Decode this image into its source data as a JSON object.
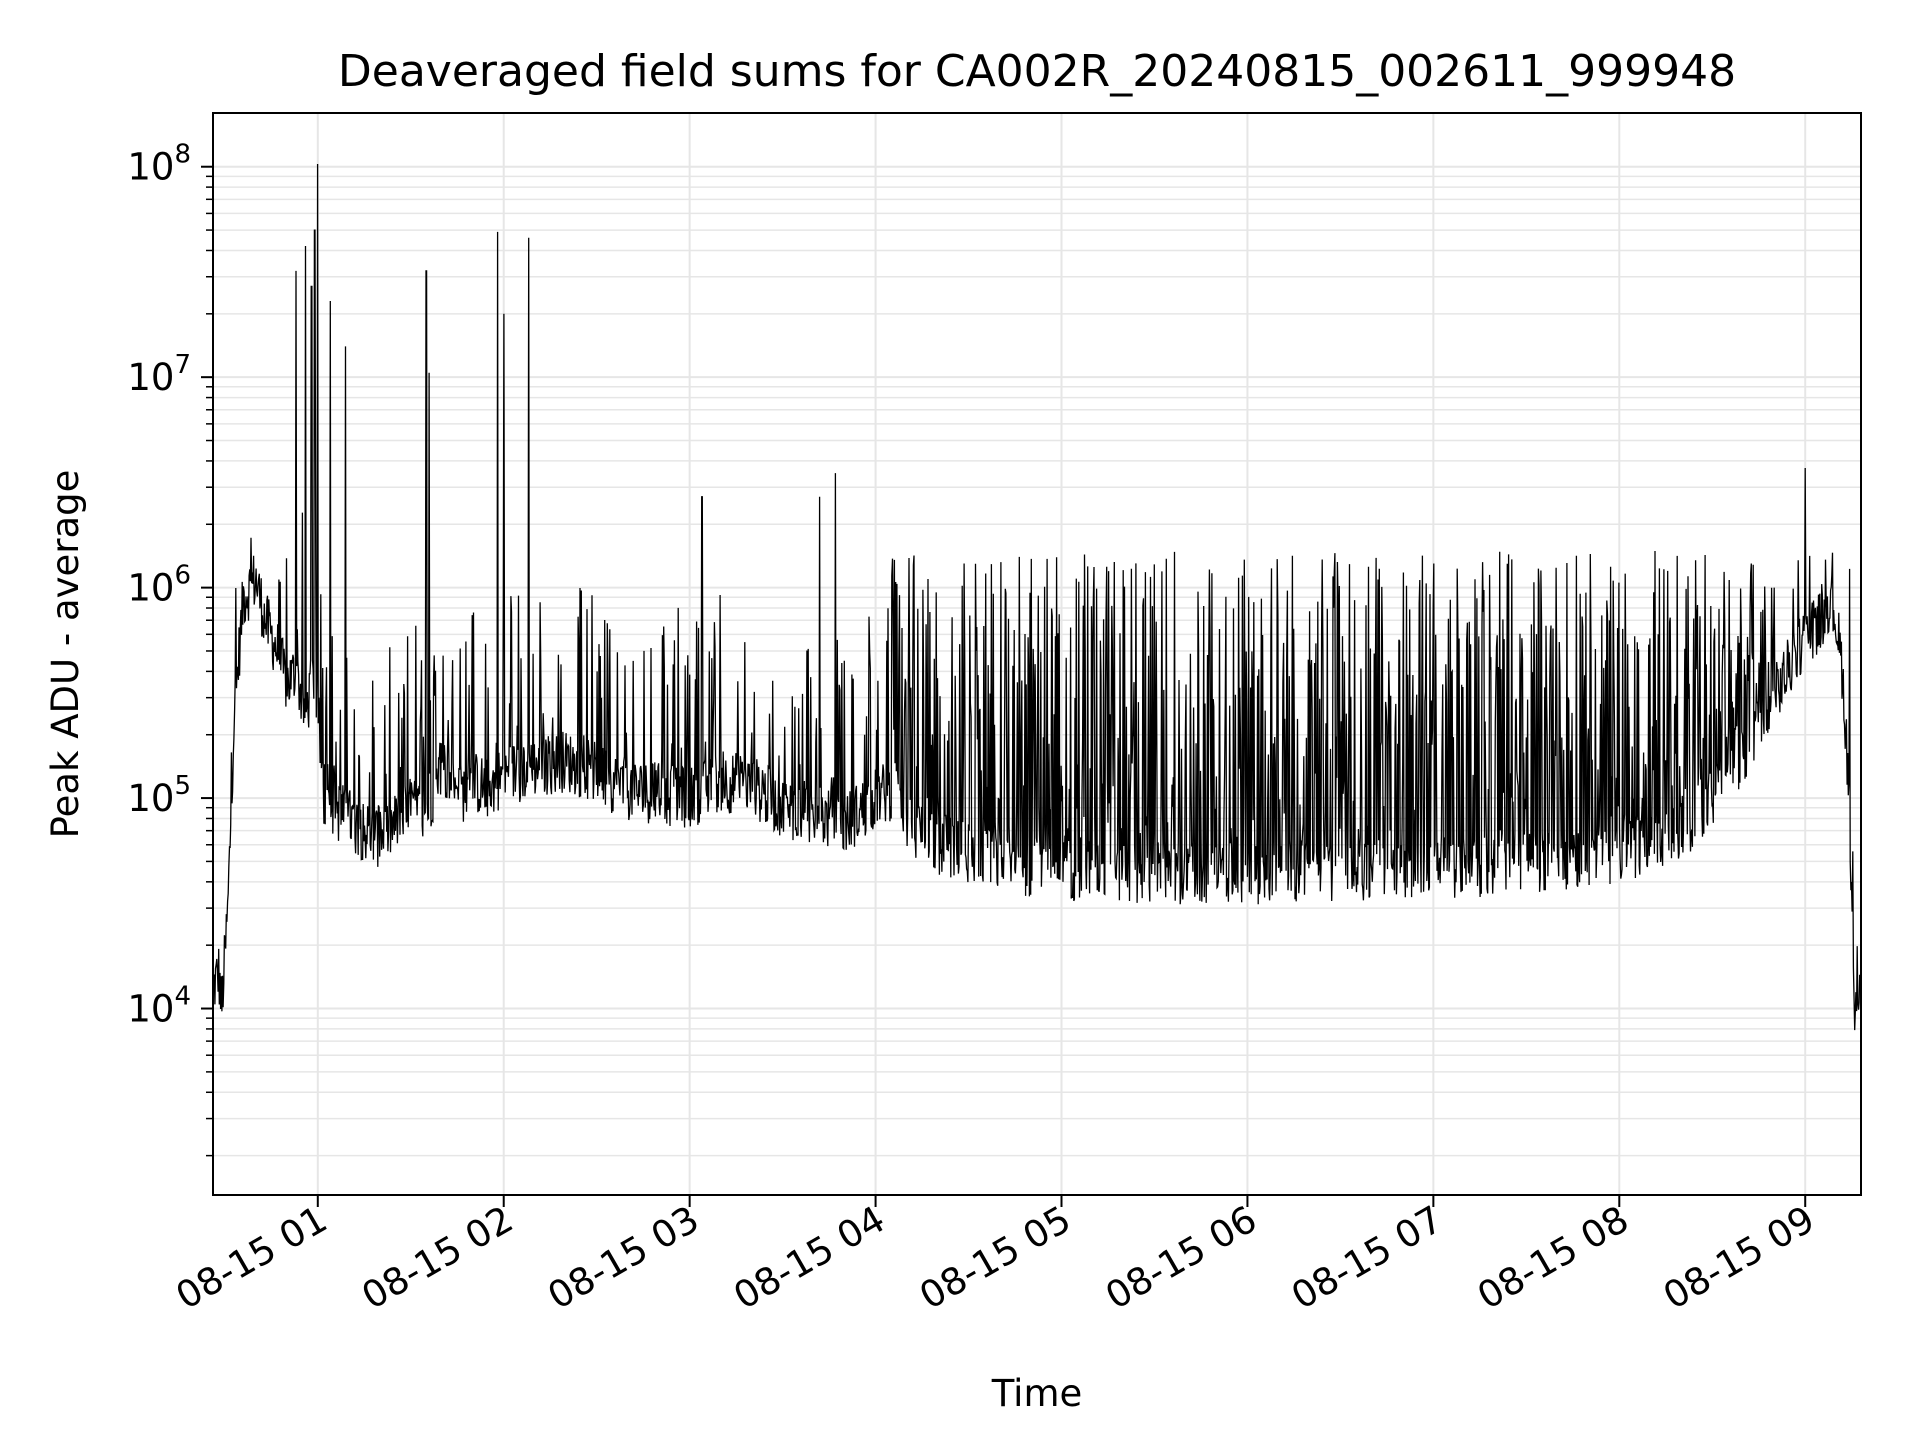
{
  "chart_data": {
    "type": "line",
    "title": "Deaveraged field sums for CA002R_20240815_002611_999948",
    "xlabel": "Time",
    "ylabel": "Peak ADU - average",
    "yscale": "log",
    "ylim": [
      1300,
      180000000
    ],
    "xlim": [
      "2024-08-15 00:26:11",
      "2024-08-15 09:18:00"
    ],
    "x_tick_labels": [
      "08-15 01",
      "08-15 02",
      "08-15 03",
      "08-15 04",
      "08-15 05",
      "08-15 06",
      "08-15 07",
      "08-15 08",
      "08-15 09"
    ],
    "x_tick_values": [
      "2024-08-15 01:00",
      "2024-08-15 02:00",
      "2024-08-15 03:00",
      "2024-08-15 04:00",
      "2024-08-15 05:00",
      "2024-08-15 06:00",
      "2024-08-15 07:00",
      "2024-08-15 08:00",
      "2024-08-15 09:00"
    ],
    "y_ticks": [
      {
        "base": "10",
        "exp": "4",
        "value": 10000
      },
      {
        "base": "10",
        "exp": "5",
        "value": 100000
      },
      {
        "base": "10",
        "exp": "6",
        "value": 1000000
      },
      {
        "base": "10",
        "exp": "7",
        "value": 10000000
      },
      {
        "base": "10",
        "exp": "8",
        "value": 100000000
      }
    ],
    "grid": true,
    "line_color": "#000000",
    "grid_color": "#e6e6e6",
    "series": [
      {
        "x": [
          "00:26",
          "00:28",
          "00:29",
          "00:31",
          "00:33",
          "00:36",
          "00:40",
          "00:43",
          "00:47",
          "00:50",
          "00:53",
          "00:56",
          "00:59",
          "01:02",
          "01:05",
          "01:10",
          "01:15",
          "01:20",
          "01:25",
          "01:30",
          "01:35",
          "01:40",
          "01:45",
          "01:50",
          "01:55",
          "02:00",
          "02:10",
          "02:20",
          "02:30",
          "02:40",
          "02:50",
          "03:00",
          "03:10",
          "03:20",
          "03:30",
          "03:40",
          "03:50",
          "04:00",
          "04:05",
          "04:10",
          "04:20",
          "04:30",
          "04:40",
          "04:50",
          "05:00",
          "05:20",
          "05:40",
          "06:00",
          "06:20",
          "06:40",
          "07:00",
          "07:20",
          "07:40",
          "08:00",
          "08:20",
          "08:40",
          "08:50",
          "09:00",
          "09:05",
          "09:08",
          "09:10",
          "09:12",
          "09:14",
          "09:16",
          "09:18"
        ],
        "y": [
          12000,
          15000,
          10000,
          30000,
          250000,
          900000,
          1100000,
          700000,
          500000,
          350000,
          400000,
          250000,
          400000,
          100000,
          90000,
          80000,
          70000,
          65000,
          75000,
          90000,
          85000,
          150000,
          100000,
          120000,
          110000,
          130000,
          140000,
          150000,
          130000,
          110000,
          105000,
          100000,
          120000,
          115000,
          90000,
          85000,
          75000,
          100000,
          110000,
          80000,
          60000,
          55000,
          50000,
          48000,
          46000,
          45000,
          44000,
          44000,
          45000,
          46000,
          47000,
          48000,
          50000,
          55000,
          70000,
          150000,
          300000,
          600000,
          700000,
          900000,
          700000,
          400000,
          120000,
          8000,
          18000
        ],
        "peaks": [
          {
            "x": "00:53",
            "y": 32000000
          },
          {
            "x": "00:56",
            "y": 42000000
          },
          {
            "x": "00:58",
            "y": 27000000
          },
          {
            "x": "00:59",
            "y": 50000000
          },
          {
            "x": "01:00",
            "y": 103000000
          },
          {
            "x": "01:04",
            "y": 23000000
          },
          {
            "x": "01:09",
            "y": 14000000
          },
          {
            "x": "01:35",
            "y": 32000000
          },
          {
            "x": "01:36",
            "y": 10500000
          },
          {
            "x": "01:58",
            "y": 49000000
          },
          {
            "x": "02:00",
            "y": 20000000
          },
          {
            "x": "02:08",
            "y": 46000000
          },
          {
            "x": "03:04",
            "y": 2700000
          },
          {
            "x": "03:42",
            "y": 2700000
          },
          {
            "x": "03:47",
            "y": 3500000
          },
          {
            "x": "09:00",
            "y": 3700000
          }
        ]
      }
    ]
  }
}
